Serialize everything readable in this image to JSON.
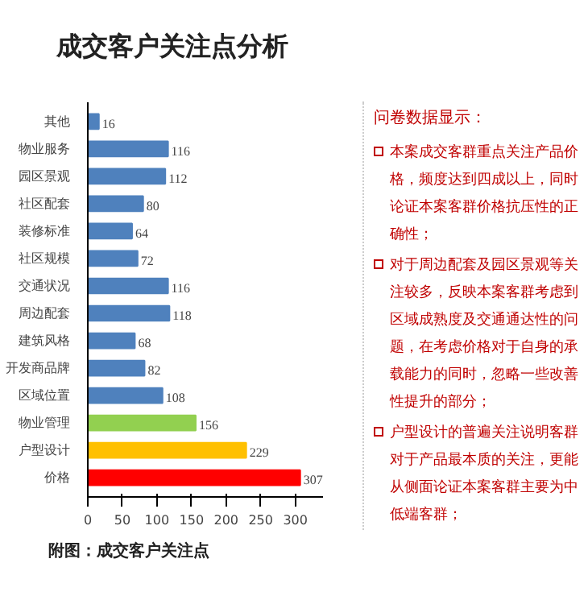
{
  "chart_data": {
    "type": "bar",
    "orientation": "horizontal",
    "title": "成交客户关注点分析",
    "categories": [
      "其他",
      "物业服务",
      "园区景观",
      "社区配套",
      "装修标准",
      "社区规模",
      "交通状况",
      "周边配套",
      "建筑风格",
      "开发商品牌",
      "区域位置",
      "物业管理",
      "户型设计",
      "价格"
    ],
    "values": [
      16,
      116,
      112,
      80,
      64,
      72,
      116,
      118,
      68,
      82,
      108,
      156,
      229,
      307
    ],
    "colors": [
      "#4f81bd",
      "#4f81bd",
      "#4f81bd",
      "#4f81bd",
      "#4f81bd",
      "#4f81bd",
      "#4f81bd",
      "#4f81bd",
      "#4f81bd",
      "#4f81bd",
      "#4f81bd",
      "#92d050",
      "#ffc000",
      "#ff0000"
    ],
    "xlim": [
      0,
      340
    ],
    "xticks": [
      0,
      50,
      100,
      150,
      200,
      250,
      300
    ],
    "data_labels": true,
    "grid": false,
    "annotations": [
      "附图：成交客户关注点",
      "问卷数据显示：",
      "本案成交客群重点关注产品价格，频度达到四成以上，同时论证本案客群价格抗压性的正确性；",
      "对于周边配套及园区景观等关注较多，反映本案客群考虑到区域成熟度及交通通达性的问题，在考虑价格对于自身的承载能力的同时，忽略一些改善性提升的部分；",
      "户型设计的普遍关注说明客群对于产品最本质的关注，更能从侧面论证本案客群主要为中低端客群；"
    ]
  }
}
